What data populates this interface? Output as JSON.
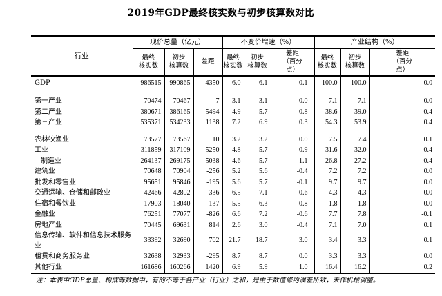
{
  "title": "2019年GDP最终核实数与初步核算数对比",
  "table": {
    "industry_header": "行业",
    "groups": [
      {
        "label": "现价总量（亿元）",
        "sub": [
          "最终\n核实数",
          "初步\n核算数",
          "差距"
        ]
      },
      {
        "label": "不变价增速（%）",
        "sub": [
          "最终\n核实数",
          "初步\n核算数",
          "差距\n（百分\n点）"
        ]
      },
      {
        "label": "产业结构（%）",
        "sub": [
          "最终\n核实数",
          "初步\n核算数",
          "差距\n（百分\n点）"
        ]
      }
    ],
    "rows": [
      {
        "name": "GDP",
        "indent": 0,
        "gdp": true,
        "values": [
          "986515",
          "990865",
          "-4350",
          "6.0",
          "6.1",
          "-0.1",
          "100.0",
          "100.0",
          "0.0"
        ]
      },
      {
        "spacer": true
      },
      {
        "name": "第一产业",
        "indent": 0,
        "values": [
          "70474",
          "70467",
          "7",
          "3.1",
          "3.1",
          "0.0",
          "7.1",
          "7.1",
          "0.0"
        ]
      },
      {
        "name": "第二产业",
        "indent": 0,
        "values": [
          "380671",
          "386165",
          "-5494",
          "4.9",
          "5.7",
          "-0.8",
          "38.6",
          "39.0",
          "-0.4"
        ]
      },
      {
        "name": "第三产业",
        "indent": 0,
        "values": [
          "535371",
          "534233",
          "1138",
          "7.2",
          "6.9",
          "0.3",
          "54.3",
          "53.9",
          "0.4"
        ]
      },
      {
        "spacer": true
      },
      {
        "name": "农林牧渔业",
        "indent": 0,
        "values": [
          "73577",
          "73567",
          "10",
          "3.2",
          "3.2",
          "0.0",
          "7.5",
          "7.4",
          "0.1"
        ]
      },
      {
        "name": "工业",
        "indent": 0,
        "values": [
          "311859",
          "317109",
          "-5250",
          "4.8",
          "5.7",
          "-0.9",
          "31.6",
          "32.0",
          "-0.4"
        ]
      },
      {
        "name": "制造业",
        "indent": 1,
        "values": [
          "264137",
          "269175",
          "-5038",
          "4.6",
          "5.7",
          "-1.1",
          "26.8",
          "27.2",
          "-0.4"
        ]
      },
      {
        "name": "建筑业",
        "indent": 0,
        "values": [
          "70648",
          "70904",
          "-256",
          "5.2",
          "5.6",
          "-0.4",
          "7.2",
          "7.2",
          "0.0"
        ]
      },
      {
        "name": "批发和零售业",
        "indent": 0,
        "values": [
          "95651",
          "95846",
          "-195",
          "5.6",
          "5.7",
          "-0.1",
          "9.7",
          "9.7",
          "0.0"
        ]
      },
      {
        "name": "交通运输、仓储和邮政业",
        "indent": 0,
        "values": [
          "42466",
          "42802",
          "-336",
          "6.5",
          "7.1",
          "-0.6",
          "4.3",
          "4.3",
          "0.0"
        ]
      },
      {
        "name": "住宿和餐饮业",
        "indent": 0,
        "values": [
          "17903",
          "18040",
          "-137",
          "5.5",
          "6.3",
          "-0.8",
          "1.8",
          "1.8",
          "0.0"
        ]
      },
      {
        "name": "金融业",
        "indent": 0,
        "values": [
          "76251",
          "77077",
          "-826",
          "6.6",
          "7.2",
          "-0.6",
          "7.7",
          "7.8",
          "-0.1"
        ]
      },
      {
        "name": "房地产业",
        "indent": 0,
        "values": [
          "70445",
          "69631",
          "814",
          "2.6",
          "3.0",
          "-0.4",
          "7.1",
          "7.0",
          "0.1"
        ]
      },
      {
        "name": "信息传输、软件和信息技术服务业",
        "indent": 0,
        "values": [
          "33392",
          "32690",
          "702",
          "21.7",
          "18.7",
          "3.0",
          "3.4",
          "3.3",
          "0.1"
        ]
      },
      {
        "name": "租赁和商务服务业",
        "indent": 0,
        "values": [
          "32638",
          "32933",
          "-295",
          "8.7",
          "8.7",
          "0.0",
          "3.3",
          "3.3",
          "0.0"
        ]
      },
      {
        "name": "其他行业",
        "indent": 0,
        "values": [
          "161686",
          "160266",
          "1420",
          "6.9",
          "5.9",
          "1.0",
          "16.4",
          "16.2",
          "0.2"
        ]
      }
    ]
  },
  "note": "注：本表中GDP总量、构成等数据中，有的不等于各产业（行业）之和，是由于数值修约误差所致，未作机械调整。"
}
